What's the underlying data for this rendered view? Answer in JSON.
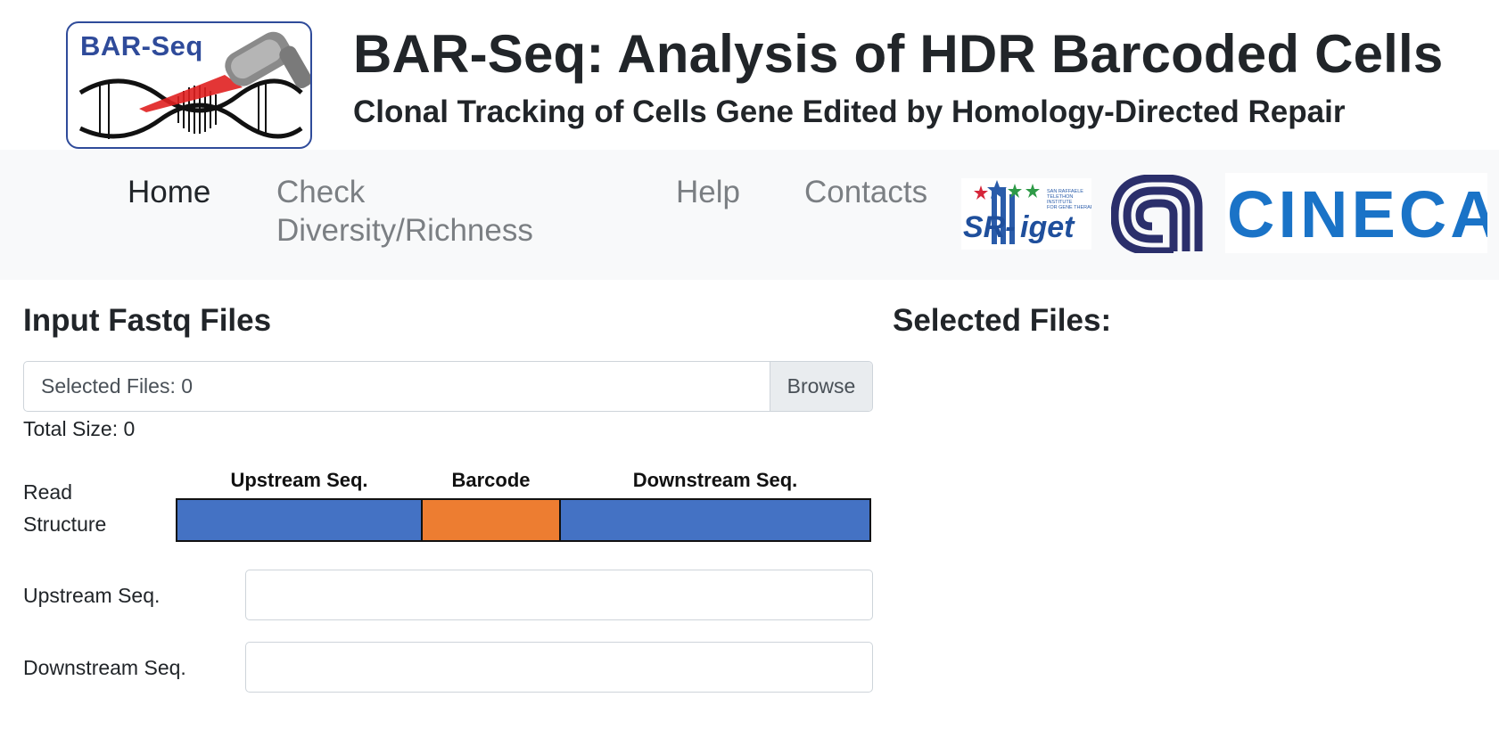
{
  "header": {
    "logo_text": "BAR-Seq",
    "title": "BAR-Seq: Analysis of HDR Barcoded Cells",
    "subtitle": "Clonal Tracking of Cells Gene Edited by Homology-Directed Repair"
  },
  "nav": {
    "items": [
      {
        "label": "Home",
        "active": true
      },
      {
        "label": "Check Diversity/Richness",
        "active": false
      },
      {
        "label": "Help",
        "active": false
      },
      {
        "label": "Contacts",
        "active": false
      }
    ],
    "sponsors": {
      "sr_tiget_text": "SR-Tiget",
      "sr_tiget_small": "SAN RAFFAELE TELETHON INSTITUTE FOR GENE THERAPY",
      "cineca_text": "CINECA"
    }
  },
  "input_section": {
    "title": "Input Fastq Files",
    "file_label": "Selected Files: 0",
    "browse_label": "Browse",
    "total_size": "Total Size: 0"
  },
  "read_structure": {
    "label": "Read Structure",
    "segments": [
      {
        "label": "Upstream Seq.",
        "color": "#4472c4"
      },
      {
        "label": "Barcode",
        "color": "#ed7d31"
      },
      {
        "label": "Downstream Seq.",
        "color": "#4472c4"
      }
    ]
  },
  "fields": {
    "upstream_label": "Upstream Seq.",
    "upstream_value": "",
    "downstream_label": "Downstream Seq.",
    "downstream_value": ""
  },
  "selected_section": {
    "title": "Selected Files:"
  },
  "colors": {
    "brand_blue": "#2f4b9a",
    "cineca_blue": "#1a73c7",
    "cnr_navy": "#2b2f6b"
  }
}
